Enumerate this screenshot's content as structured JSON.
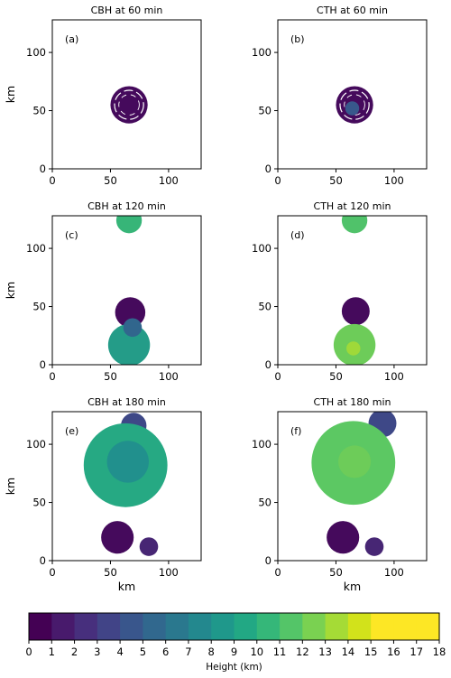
{
  "chart_data": {
    "type": "heatmap",
    "colormap": "viridis",
    "panels": [
      {
        "id": "a",
        "label": "(a)",
        "title": "CBH at 60 min",
        "variable": "CBH",
        "time_min": 60,
        "xlim": [
          0,
          128
        ],
        "ylim": [
          0,
          128
        ],
        "xticks": [
          0,
          50,
          100
        ],
        "yticks": [
          0,
          50,
          100
        ],
        "xlabel": "",
        "ylabel": "km"
      },
      {
        "id": "b",
        "label": "(b)",
        "title": "CTH at 60 min",
        "variable": "CTH",
        "time_min": 60,
        "xlim": [
          0,
          128
        ],
        "ylim": [
          0,
          128
        ],
        "xticks": [
          0,
          50,
          100
        ],
        "yticks": [
          0,
          50,
          100
        ],
        "xlabel": "",
        "ylabel": ""
      },
      {
        "id": "c",
        "label": "(c)",
        "title": "CBH at 120 min",
        "variable": "CBH",
        "time_min": 120,
        "xlim": [
          0,
          128
        ],
        "ylim": [
          0,
          128
        ],
        "xticks": [
          0,
          50,
          100
        ],
        "yticks": [
          0,
          50,
          100
        ],
        "xlabel": "",
        "ylabel": "km"
      },
      {
        "id": "d",
        "label": "(d)",
        "title": "CTH at 120 min",
        "variable": "CTH",
        "time_min": 120,
        "xlim": [
          0,
          128
        ],
        "ylim": [
          0,
          128
        ],
        "xticks": [
          0,
          50,
          100
        ],
        "yticks": [
          0,
          50,
          100
        ],
        "xlabel": "",
        "ylabel": ""
      },
      {
        "id": "e",
        "label": "(e)",
        "title": "CBH at 180 min",
        "variable": "CBH",
        "time_min": 180,
        "xlim": [
          0,
          128
        ],
        "ylim": [
          0,
          128
        ],
        "xticks": [
          0,
          50,
          100
        ],
        "yticks": [
          0,
          50,
          100
        ],
        "xlabel": "km",
        "ylabel": "km"
      },
      {
        "id": "f",
        "label": "(f)",
        "title": "CTH at 180 min",
        "variable": "CTH",
        "time_min": 180,
        "xlim": [
          0,
          128
        ],
        "ylim": [
          0,
          128
        ],
        "xticks": [
          0,
          50,
          100
        ],
        "yticks": [
          0,
          50,
          100
        ],
        "xlabel": "km",
        "ylabel": ""
      }
    ],
    "colorbar": {
      "label": "Height (km)",
      "range": [
        0,
        18
      ],
      "ticks": [
        "0",
        "1",
        "2",
        "3",
        "4",
        "5",
        "6",
        "7",
        "8",
        "9",
        "10",
        "11",
        "12",
        "13",
        "14",
        "15",
        "16",
        "17",
        "18"
      ],
      "colors": [
        "#440154",
        "#481a6c",
        "#472f7d",
        "#414487",
        "#39568c",
        "#31688e",
        "#2a788e",
        "#23888e",
        "#1f988b",
        "#22a884",
        "#35b779",
        "#54c568",
        "#7ad151",
        "#a5db36",
        "#d2e21b",
        "#fde725",
        "#fde725",
        "#fde725"
      ]
    },
    "cloud_regions": [
      {
        "panel": "a",
        "kind": "ring",
        "cx": 66,
        "cy": 55,
        "r": 16,
        "value": 0.5
      },
      {
        "panel": "b",
        "kind": "ring",
        "cx": 66,
        "cy": 55,
        "r": 16,
        "value": 0.5
      },
      {
        "panel": "b",
        "kind": "blob",
        "cx": 64,
        "cy": 52,
        "r": 6,
        "value": 5
      },
      {
        "panel": "c",
        "kind": "blob",
        "cx": 66,
        "cy": 124,
        "r": 11,
        "value": 12
      },
      {
        "panel": "c",
        "kind": "blob",
        "cx": 67,
        "cy": 45,
        "r": 13,
        "value": 0.5
      },
      {
        "panel": "c",
        "kind": "blob",
        "cx": 66,
        "cy": 17,
        "r": 18,
        "value": 10
      },
      {
        "panel": "c",
        "kind": "blob",
        "cx": 69,
        "cy": 32,
        "r": 8,
        "value": 6
      },
      {
        "panel": "d",
        "kind": "blob",
        "cx": 66,
        "cy": 124,
        "r": 11,
        "value": 13
      },
      {
        "panel": "d",
        "kind": "blob",
        "cx": 67,
        "cy": 46,
        "r": 12,
        "value": 0.5
      },
      {
        "panel": "d",
        "kind": "blob",
        "cx": 66,
        "cy": 17,
        "r": 18,
        "value": 14
      },
      {
        "panel": "d",
        "kind": "blob",
        "cx": 65,
        "cy": 14,
        "r": 6,
        "value": 15.5
      },
      {
        "panel": "e",
        "kind": "blob",
        "cx": 70,
        "cy": 116,
        "r": 11,
        "value": 4
      },
      {
        "panel": "e",
        "kind": "blob",
        "cx": 63,
        "cy": 82,
        "r": 36,
        "value": 11
      },
      {
        "panel": "e",
        "kind": "blob",
        "cx": 65,
        "cy": 85,
        "r": 18,
        "value": 9
      },
      {
        "panel": "e",
        "kind": "blob",
        "cx": 56,
        "cy": 20,
        "r": 14,
        "value": 0.5
      },
      {
        "panel": "e",
        "kind": "blob",
        "cx": 83,
        "cy": 12,
        "r": 8,
        "value": 2
      },
      {
        "panel": "f",
        "kind": "blob",
        "cx": 90,
        "cy": 118,
        "r": 12,
        "value": 4
      },
      {
        "panel": "f",
        "kind": "blob",
        "cx": 65,
        "cy": 84,
        "r": 36,
        "value": 13.5
      },
      {
        "panel": "f",
        "kind": "blob",
        "cx": 66,
        "cy": 85,
        "r": 14,
        "value": 14
      },
      {
        "panel": "f",
        "kind": "blob",
        "cx": 56,
        "cy": 20,
        "r": 14,
        "value": 0.5
      },
      {
        "panel": "f",
        "kind": "blob",
        "cx": 83,
        "cy": 12,
        "r": 8,
        "value": 2
      }
    ]
  }
}
